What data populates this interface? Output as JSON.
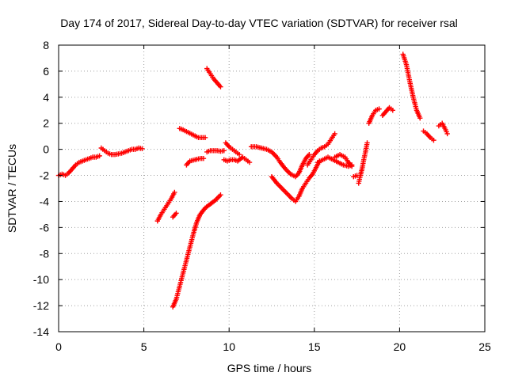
{
  "chart_data": {
    "type": "scatter",
    "title": "Day 174 of 2017, Sidereal Day-to-day VTEC variation (SDTVAR) for receiver rsal",
    "xlabel": "GPS time / hours",
    "ylabel": "SDTVAR / TECUs",
    "xlim": [
      0,
      25
    ],
    "ylim": [
      -14,
      8
    ],
    "xticks": [
      "0",
      "5",
      "10",
      "15",
      "20",
      "25"
    ],
    "yticks": [
      "8",
      "6",
      "4",
      "2",
      "0",
      "-2",
      "-4",
      "-6",
      "-8",
      "-10",
      "-12",
      "-14"
    ],
    "grid": true,
    "marker": "+",
    "colors": {
      "series": "#ff0000",
      "grid": "#a0a0a0",
      "axis": "#000000"
    },
    "series": [
      {
        "segments": [
          [
            [
              0.0,
              -2.0
            ],
            [
              0.2,
              -1.9
            ],
            [
              0.4,
              -2.0
            ],
            [
              0.6,
              -1.8
            ],
            [
              0.8,
              -1.5
            ],
            [
              1.0,
              -1.2
            ],
            [
              1.2,
              -1.0
            ],
            [
              1.4,
              -0.9
            ],
            [
              1.6,
              -0.8
            ],
            [
              1.8,
              -0.7
            ],
            [
              2.0,
              -0.6
            ],
            [
              2.2,
              -0.6
            ],
            [
              2.4,
              -0.5
            ]
          ],
          [
            [
              2.5,
              0.1
            ],
            [
              2.7,
              -0.1
            ],
            [
              2.9,
              -0.3
            ],
            [
              3.1,
              -0.4
            ],
            [
              3.3,
              -0.4
            ],
            [
              3.5,
              -0.35
            ],
            [
              3.7,
              -0.3
            ],
            [
              3.9,
              -0.2
            ],
            [
              4.1,
              -0.1
            ],
            [
              4.3,
              0.0
            ],
            [
              4.5,
              0.0
            ],
            [
              4.7,
              0.1
            ],
            [
              4.9,
              0.05
            ]
          ],
          [
            [
              5.8,
              -5.5
            ],
            [
              6.0,
              -5.0
            ],
            [
              6.2,
              -4.6
            ],
            [
              6.4,
              -4.2
            ],
            [
              6.6,
              -3.8
            ],
            [
              6.8,
              -3.3
            ]
          ],
          [
            [
              6.7,
              -5.2
            ],
            [
              6.9,
              -4.9
            ]
          ],
          [
            [
              6.7,
              -12.1
            ],
            [
              6.9,
              -11.5
            ],
            [
              7.1,
              -10.5
            ],
            [
              7.3,
              -9.5
            ],
            [
              7.5,
              -8.5
            ],
            [
              7.7,
              -7.5
            ],
            [
              7.9,
              -6.5
            ],
            [
              8.1,
              -5.6
            ],
            [
              8.3,
              -5.0
            ],
            [
              8.6,
              -4.5
            ],
            [
              8.9,
              -4.2
            ],
            [
              9.2,
              -3.9
            ],
            [
              9.5,
              -3.5
            ]
          ],
          [
            [
              7.1,
              1.6
            ],
            [
              7.3,
              1.5
            ],
            [
              7.6,
              1.3
            ],
            [
              7.9,
              1.1
            ],
            [
              8.2,
              0.9
            ],
            [
              8.6,
              0.9
            ]
          ],
          [
            [
              7.5,
              -1.2
            ],
            [
              7.7,
              -0.9
            ],
            [
              8.0,
              -0.8
            ],
            [
              8.3,
              -0.7
            ],
            [
              8.5,
              -0.7
            ]
          ],
          [
            [
              8.7,
              6.2
            ],
            [
              8.9,
              5.8
            ],
            [
              9.1,
              5.4
            ],
            [
              9.3,
              5.1
            ],
            [
              9.5,
              4.8
            ]
          ],
          [
            [
              8.7,
              -0.2
            ],
            [
              8.9,
              -0.1
            ],
            [
              9.1,
              -0.1
            ],
            [
              9.3,
              -0.1
            ],
            [
              9.5,
              -0.15
            ],
            [
              9.7,
              -0.1
            ]
          ],
          [
            [
              9.7,
              -0.8
            ],
            [
              9.9,
              -0.9
            ],
            [
              10.1,
              -0.8
            ],
            [
              10.3,
              -0.8
            ],
            [
              10.5,
              -0.9
            ],
            [
              10.8,
              -0.6
            ],
            [
              11.0,
              -0.8
            ],
            [
              11.2,
              -1.0
            ]
          ],
          [
            [
              9.8,
              0.5
            ],
            [
              10.0,
              0.2
            ],
            [
              10.2,
              0.0
            ],
            [
              10.4,
              -0.2
            ],
            [
              10.6,
              -0.4
            ]
          ],
          [
            [
              11.3,
              0.2
            ],
            [
              11.6,
              0.2
            ],
            [
              11.9,
              0.1
            ],
            [
              12.2,
              0.0
            ],
            [
              12.5,
              -0.2
            ],
            [
              12.8,
              -0.6
            ],
            [
              13.0,
              -1.0
            ],
            [
              13.3,
              -1.5
            ],
            [
              13.6,
              -1.9
            ],
            [
              13.9,
              -2.1
            ],
            [
              14.1,
              -1.8
            ],
            [
              14.3,
              -1.2
            ],
            [
              14.5,
              -0.7
            ],
            [
              14.7,
              -0.4
            ]
          ],
          [
            [
              12.5,
              -2.1
            ],
            [
              12.8,
              -2.6
            ],
            [
              13.1,
              -3.0
            ],
            [
              13.4,
              -3.4
            ],
            [
              13.7,
              -3.8
            ],
            [
              13.9,
              -4.0
            ],
            [
              14.1,
              -3.6
            ],
            [
              14.3,
              -3.0
            ],
            [
              14.5,
              -2.6
            ],
            [
              14.7,
              -2.2
            ],
            [
              14.9,
              -1.9
            ],
            [
              15.1,
              -1.4
            ],
            [
              15.3,
              -0.9
            ]
          ],
          [
            [
              14.6,
              -1.2
            ],
            [
              14.8,
              -0.8
            ],
            [
              15.0,
              -0.4
            ],
            [
              15.2,
              -0.1
            ],
            [
              15.4,
              0.1
            ],
            [
              15.6,
              0.2
            ],
            [
              15.8,
              0.4
            ],
            [
              16.0,
              0.8
            ],
            [
              16.2,
              1.2
            ]
          ],
          [
            [
              15.2,
              -1.0
            ],
            [
              15.5,
              -0.8
            ],
            [
              15.8,
              -0.6
            ],
            [
              16.1,
              -0.8
            ],
            [
              16.4,
              -1.0
            ],
            [
              16.7,
              -1.2
            ],
            [
              17.0,
              -1.3
            ],
            [
              17.2,
              -1.2
            ]
          ],
          [
            [
              16.2,
              -0.6
            ],
            [
              16.5,
              -0.4
            ],
            [
              16.8,
              -0.6
            ],
            [
              17.0,
              -1.0
            ],
            [
              17.2,
              -1.3
            ]
          ],
          [
            [
              17.3,
              -2.1
            ],
            [
              17.5,
              -2.0
            ]
          ],
          [
            [
              17.6,
              -2.6
            ],
            [
              17.7,
              -2.0
            ],
            [
              17.8,
              -1.5
            ],
            [
              17.9,
              -0.8
            ],
            [
              18.0,
              -0.2
            ],
            [
              18.1,
              0.5
            ]
          ],
          [
            [
              18.2,
              2.0
            ],
            [
              18.4,
              2.6
            ],
            [
              18.6,
              3.0
            ],
            [
              18.8,
              3.1
            ]
          ],
          [
            [
              19.0,
              2.6
            ],
            [
              19.2,
              2.9
            ],
            [
              19.4,
              3.2
            ],
            [
              19.6,
              3.0
            ]
          ],
          [
            [
              20.2,
              7.3
            ],
            [
              20.4,
              6.5
            ],
            [
              20.6,
              5.2
            ],
            [
              20.8,
              4.0
            ],
            [
              21.0,
              3.0
            ],
            [
              21.2,
              2.4
            ]
          ],
          [
            [
              21.4,
              1.4
            ],
            [
              21.6,
              1.2
            ],
            [
              21.8,
              0.9
            ],
            [
              22.0,
              0.7
            ]
          ],
          [
            [
              22.3,
              1.8
            ],
            [
              22.5,
              2.0
            ],
            [
              22.7,
              1.5
            ],
            [
              22.8,
              1.2
            ]
          ]
        ]
      }
    ]
  }
}
